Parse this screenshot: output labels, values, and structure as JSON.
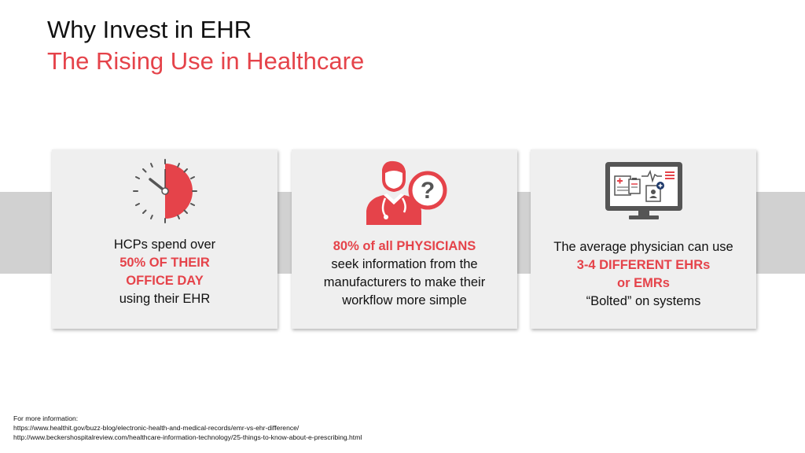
{
  "slide": {
    "title": "Why Invest in EHR",
    "subtitle": "The Rising Use in Healthcare"
  },
  "cards": [
    {
      "icon": "clock-icon",
      "lines": [
        "HCPs spend over",
        "50% OF THEIR",
        "OFFICE DAY",
        "using their EHR"
      ],
      "highlight": [
        false,
        true,
        true,
        false
      ]
    },
    {
      "icon": "physician-question-icon",
      "lines": [
        "80% of all PHYSICIANS",
        "seek information from the",
        "manufacturers to make their",
        "workflow more simple"
      ],
      "highlight": [
        true,
        false,
        false,
        false
      ]
    },
    {
      "icon": "monitor-records-icon",
      "lines": [
        "The average physician can use",
        "3-4 DIFFERENT EHRs",
        "or EMRs",
        "“Bolted” on systems"
      ],
      "highlight": [
        false,
        true,
        true,
        false
      ]
    }
  ],
  "footnote": {
    "heading": "For more information:",
    "links": [
      "https://www.healthit.gov/buzz-blog/electronic-health-and-medical-records/emr-vs-ehr-difference/",
      "http://www.beckershospitalreview.com/healthcare-information-technology/25-things-to-know-about-e-prescribing.html"
    ]
  },
  "colors": {
    "accent": "#e5434a",
    "band": "#d1d1d1",
    "card": "#efefef",
    "icon_dark": "#555555"
  }
}
